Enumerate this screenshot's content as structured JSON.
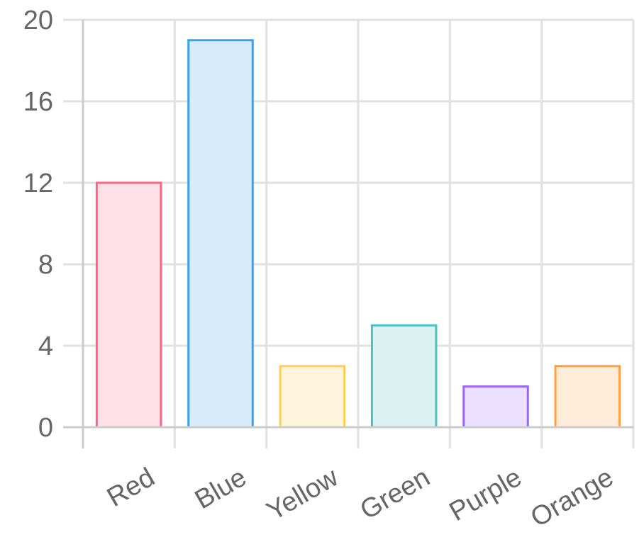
{
  "chart_data": {
    "type": "bar",
    "title": "",
    "xlabel": "",
    "ylabel": "",
    "categories": [
      "Red",
      "Blue",
      "Yellow",
      "Green",
      "Purple",
      "Orange"
    ],
    "values": [
      12,
      19,
      3,
      5,
      2,
      3
    ],
    "ylim": [
      0,
      20
    ],
    "yticks": [
      0,
      4,
      8,
      12,
      16,
      20
    ],
    "grid": true,
    "legend": "none",
    "colors": {
      "border": [
        "#ff6384",
        "#36a2eb",
        "#ffce56",
        "#4bc0c0",
        "#9966ff",
        "#ff9f40"
      ],
      "fill": [
        "#ffe0e6",
        "#d7ecfb",
        "#fff5dd",
        "#dbf2f2",
        "#ebe0ff",
        "#ffecd9"
      ],
      "grid": "#e1e1e1",
      "axis": "#cccccc",
      "tick_text": "#666666"
    }
  }
}
